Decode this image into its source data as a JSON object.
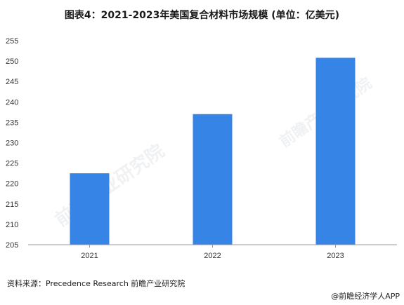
{
  "title": "图表4：2021-2023年美国复合材料市场规模 (单位：亿美元)",
  "source": "资料来源：Precedence Research 前瞻产业研究院",
  "credit": "@前瞻经济学人APP",
  "watermark": "前瞻产业研究院",
  "colors": {
    "bar": "#3684E6",
    "axis": "#999999"
  },
  "chart_data": {
    "type": "bar",
    "title": "图表4：2021-2023年美国复合材料市场规模 (单位：亿美元)",
    "categories": [
      "2021",
      "2022",
      "2023"
    ],
    "values": [
      222.5,
      237,
      250.8
    ],
    "xlabel": "",
    "ylabel": "",
    "ylim": [
      205,
      255
    ],
    "yticks": [
      205,
      210,
      215,
      220,
      225,
      230,
      235,
      240,
      245,
      250,
      255
    ],
    "grid": false,
    "legend": "none"
  }
}
